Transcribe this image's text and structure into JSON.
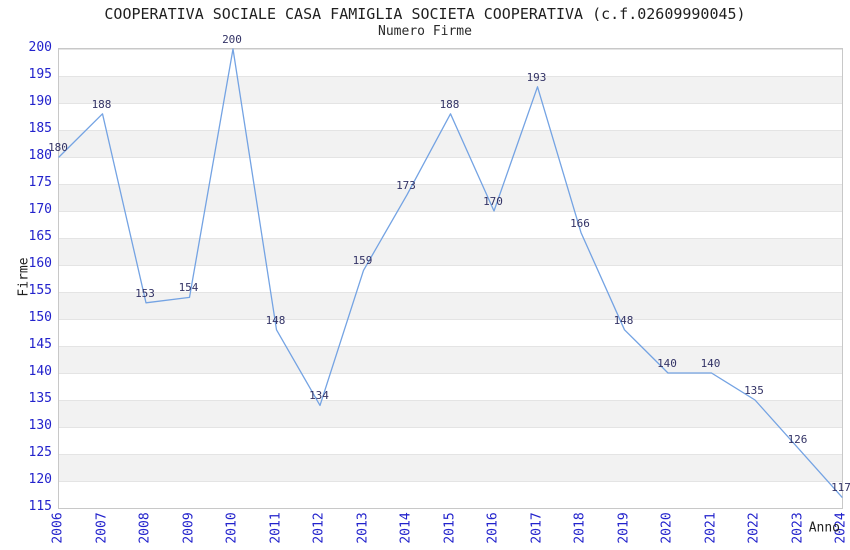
{
  "chart_data": {
    "type": "line",
    "title": "COOPERATIVA SOCIALE CASA FAMIGLIA SOCIETA COOPERATIVA (c.f.02609990045)",
    "subtitle": "Numero Firme",
    "xlabel": "Anno",
    "ylabel": "Firme",
    "x": [
      2006,
      2007,
      2008,
      2009,
      2010,
      2011,
      2012,
      2013,
      2014,
      2015,
      2016,
      2017,
      2018,
      2019,
      2020,
      2021,
      2022,
      2023,
      2024
    ],
    "values": [
      180,
      188,
      153,
      154,
      200,
      148,
      134,
      159,
      173,
      188,
      170,
      193,
      166,
      148,
      140,
      140,
      135,
      126,
      117
    ],
    "ylim": [
      115,
      200
    ],
    "ytick_step": 5,
    "grid": "horizontal gridlines every 5 units with alternating gray/white bands",
    "legend": "none",
    "colors": {
      "line": "#74a3e3",
      "tick_labels": "#2222cc",
      "point_labels": "#333366",
      "band_gray": "#f2f2f2",
      "plot_border": "#c8c8c8",
      "title_text": "#1f1f1f"
    }
  }
}
